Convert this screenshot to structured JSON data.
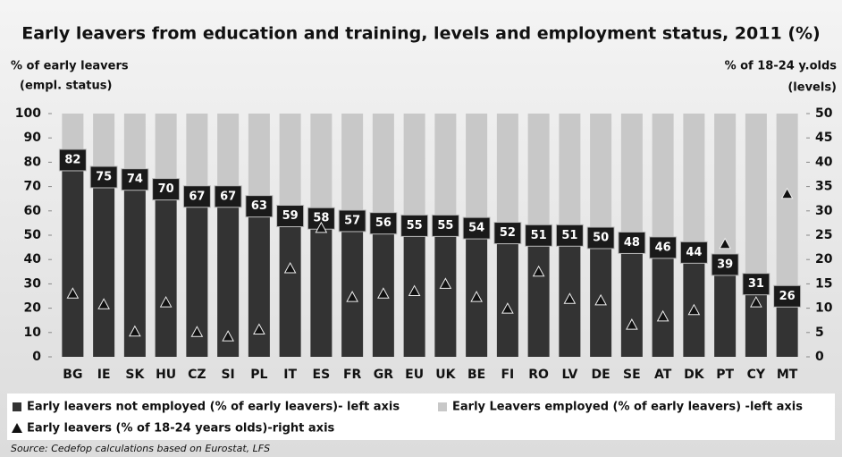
{
  "chart_data": {
    "type": "bar",
    "stacked": true,
    "title": "Early leavers from education and training, levels and employment status, 2011 (%)",
    "ylabel": [
      "% of early leavers",
      "(empl. status)"
    ],
    "y2label": [
      "% of 18-24 y.olds",
      "(levels)"
    ],
    "source": "Source: Cedefop calculations based on Eurostat, LFS",
    "categories": [
      "BG",
      "IE",
      "SK",
      "HU",
      "CZ",
      "SI",
      "PL",
      "IT",
      "ES",
      "FR",
      "GR",
      "EU",
      "UK",
      "BE",
      "FI",
      "RO",
      "LV",
      "DE",
      "SE",
      "AT",
      "DK",
      "PT",
      "CY",
      "MT"
    ],
    "series": [
      {
        "name": "Early leavers not employed  (% of early leavers)- left axis",
        "color": "#333333",
        "values": [
          82,
          75,
          74,
          70,
          67,
          67,
          63,
          59,
          58,
          57,
          56,
          55,
          55,
          54,
          52,
          51,
          51,
          50,
          48,
          46,
          44,
          39,
          31,
          26
        ]
      },
      {
        "name": "Early Leavers employed (% of early leavers) -left axis",
        "color": "#c8c8c8",
        "values": [
          18,
          25,
          26,
          30,
          33,
          33,
          37,
          41,
          42,
          43,
          44,
          45,
          45,
          46,
          48,
          49,
          49,
          50,
          52,
          54,
          56,
          61,
          69,
          74
        ]
      },
      {
        "name": "Early leavers (% of 18-24 years olds)-right axis",
        "color": "#111111",
        "type": "scatter",
        "axis": "y2",
        "values": [
          13,
          10.8,
          5.2,
          11.2,
          5.1,
          4.2,
          5.6,
          18.2,
          26.5,
          12.3,
          13,
          13.5,
          15,
          12.3,
          9.9,
          17.5,
          11.9,
          11.6,
          6.6,
          8.3,
          9.6,
          23.2,
          11.2,
          33.5
        ]
      }
    ],
    "ylim": [
      0,
      100
    ],
    "yticks": [
      0,
      10,
      20,
      30,
      40,
      50,
      60,
      70,
      80,
      90,
      100
    ],
    "y2lim": [
      0,
      50
    ],
    "y2ticks": [
      0,
      5,
      10,
      15,
      20,
      25,
      30,
      35,
      40,
      45,
      50
    ],
    "data_labels": true,
    "grid": false
  }
}
